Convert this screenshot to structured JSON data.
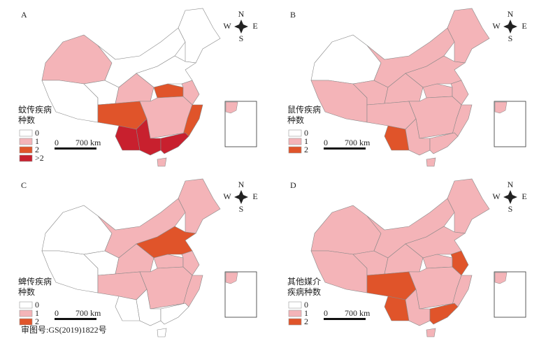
{
  "panels": [
    {
      "label": "A",
      "legend_title": [
        "蚊传疾病",
        "种数"
      ],
      "legend": [
        {
          "label": "0",
          "color": "#ffffff"
        },
        {
          "label": "1",
          "color": "#f4b4b8"
        },
        {
          "label": "2",
          "color": "#e0542a"
        },
        {
          "label": ">2",
          "color": "#c8202e"
        }
      ]
    },
    {
      "label": "B",
      "legend_title": [
        "鼠传疾病",
        "种数"
      ],
      "legend": [
        {
          "label": "0",
          "color": "#ffffff"
        },
        {
          "label": "1",
          "color": "#f4b4b8"
        },
        {
          "label": "2",
          "color": "#e0542a"
        }
      ]
    },
    {
      "label": "C",
      "legend_title": [
        "蜱传疾病",
        "种数"
      ],
      "legend": [
        {
          "label": "0",
          "color": "#ffffff"
        },
        {
          "label": "1",
          "color": "#f4b4b8"
        },
        {
          "label": "2",
          "color": "#e0542a"
        }
      ]
    },
    {
      "label": "D",
      "legend_title": [
        "其他媒介",
        "疾病种数"
      ],
      "legend": [
        {
          "label": "0",
          "color": "#ffffff"
        },
        {
          "label": "1",
          "color": "#f4b4b8"
        },
        {
          "label": "2",
          "color": "#e0542a"
        }
      ]
    }
  ],
  "scale_bar": {
    "start": "0",
    "end": "700 km"
  },
  "compass": {
    "n": "N",
    "e": "E",
    "s": "S",
    "w": "W"
  },
  "approval": "审图号:GS(2019)1822号"
}
